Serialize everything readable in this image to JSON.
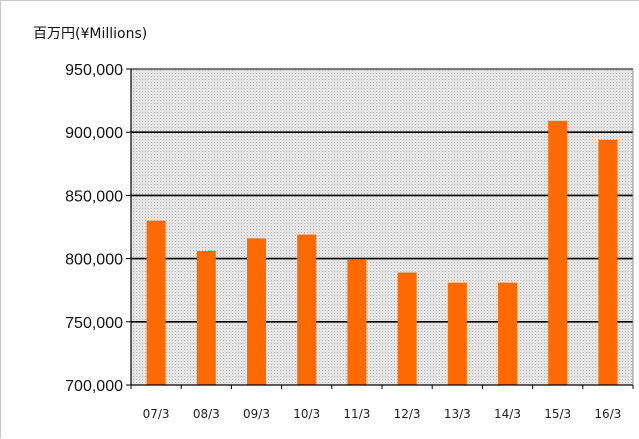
{
  "chart_data": {
    "type": "bar",
    "title": "",
    "ylabel": "百万円(¥Millions)",
    "xlabel": "",
    "categories": [
      "07/3",
      "08/3",
      "09/3",
      "10/3",
      "11/3",
      "12/3",
      "13/3",
      "14/3",
      "15/3",
      "16/3"
    ],
    "values": [
      830000,
      806000,
      816000,
      819000,
      799000,
      789000,
      781000,
      781000,
      909000,
      894000
    ],
    "ylim": [
      700000,
      950000
    ],
    "yticks": [
      700000,
      750000,
      800000,
      850000,
      900000,
      950000
    ],
    "ytick_labels": [
      "700,000",
      "750,000",
      "800,000",
      "850,000",
      "900,000",
      "950,000"
    ],
    "grid": true,
    "legend": "none",
    "colors": {
      "bar": "#ff6a00",
      "plot_background": "#d8d8d8",
      "gridline": "#000000"
    }
  }
}
